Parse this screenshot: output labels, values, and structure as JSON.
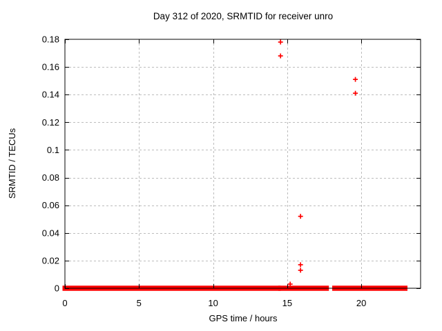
{
  "page": {
    "background": "#ffffff",
    "border_color": "#000000",
    "accent_color": "#ff0000"
  },
  "chart_data": {
    "type": "scatter",
    "title": "Day 312 of 2020, SRMTID for receiver unro",
    "xlabel": "GPS time / hours",
    "ylabel": "SRMTID / TECUs",
    "xlim": [
      0,
      24
    ],
    "ylim": [
      0,
      0.18
    ],
    "xticks": {
      "values": [
        0,
        5,
        10,
        15,
        20
      ],
      "labels": [
        "0",
        "5",
        "10",
        "15",
        "20"
      ]
    },
    "yticks": {
      "values": [
        0,
        0.02,
        0.04,
        0.06,
        0.08,
        0.1,
        0.12,
        0.14,
        0.16,
        0.18
      ],
      "labels": [
        "0",
        "0.02",
        "0.04",
        "0.06",
        "0.08",
        "0.1",
        "0.12",
        "0.14",
        "0.16",
        "0.18"
      ]
    },
    "grid": {
      "visible": true,
      "style": "dashed",
      "color": "#bcbcbc"
    },
    "legend": "none",
    "marker": {
      "shape": "plus",
      "color": "#ff0000",
      "size": 7
    },
    "series": [
      {
        "name": "SRMTID",
        "points": [
          [
            14.55,
            0.178
          ],
          [
            14.55,
            0.168
          ],
          [
            15.2,
            0.003
          ],
          [
            15.9,
            0.052
          ],
          [
            15.9,
            0.017
          ],
          [
            15.9,
            0.013
          ],
          [
            19.6,
            0.151
          ],
          [
            19.6,
            0.141
          ]
        ]
      }
    ],
    "zero_level_bands": {
      "y": 0,
      "segments_hours": [
        [
          0,
          14.4
        ],
        [
          14.56,
          17.65
        ],
        [
          18.2,
          22.95
        ]
      ]
    }
  }
}
